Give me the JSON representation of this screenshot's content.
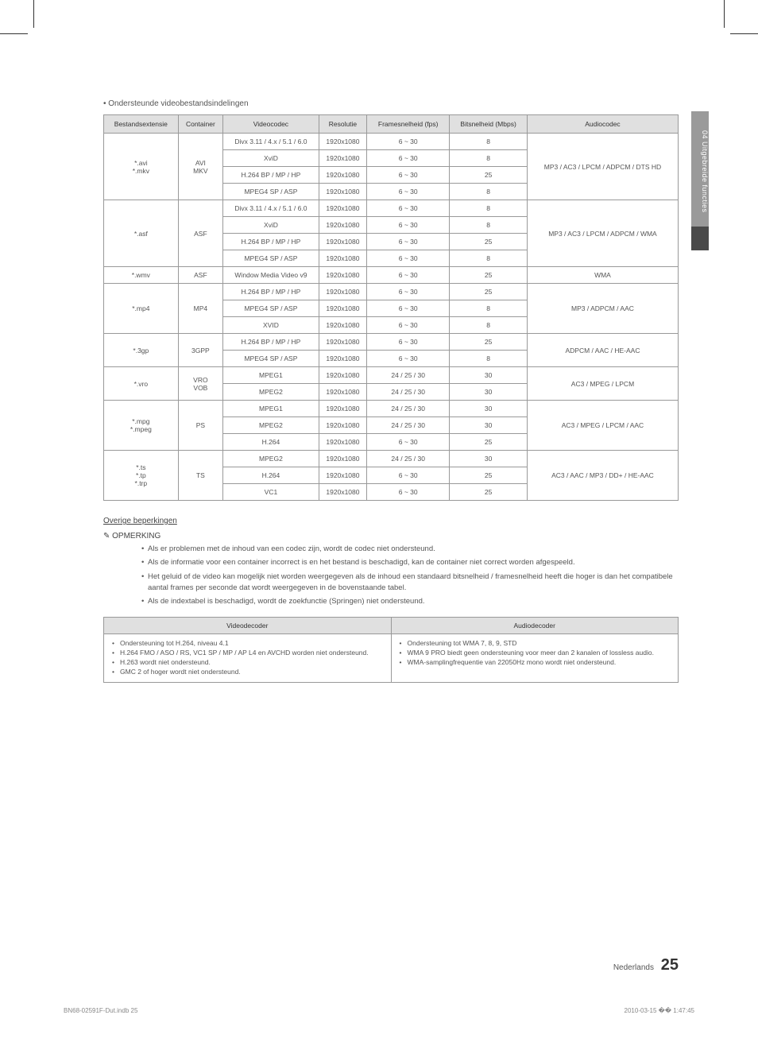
{
  "side_tab": "04  Uitgebreide functies",
  "bullet_heading": "•  Ondersteunde videobestandsindelingen",
  "table": {
    "headers": [
      "Bestandsextensie",
      "Container",
      "Videocodec",
      "Resolutie",
      "Framesnelheid (fps)",
      "Bitsnelheid (Mbps)",
      "Audiocodec"
    ],
    "rows": [
      {
        "ext": "*.avi\n*.mkv",
        "ext_rs": 4,
        "cont": "AVI\nMKV",
        "cont_rs": 4,
        "codec": "Divx 3.11 / 4.x / 5.1 / 6.0",
        "res": "1920x1080",
        "fps": "6 ~ 30",
        "bit": "8",
        "audio": "MP3 / AC3 / LPCM / ADPCM / DTS HD",
        "audio_rs": 4
      },
      {
        "codec": "XviD",
        "res": "1920x1080",
        "fps": "6 ~ 30",
        "bit": "8"
      },
      {
        "codec": "H.264 BP / MP / HP",
        "res": "1920x1080",
        "fps": "6 ~ 30",
        "bit": "25"
      },
      {
        "codec": "MPEG4 SP / ASP",
        "res": "1920x1080",
        "fps": "6 ~ 30",
        "bit": "8"
      },
      {
        "ext": "*.asf",
        "ext_rs": 4,
        "cont": "ASF",
        "cont_rs": 4,
        "codec": "Divx 3.11 / 4.x / 5.1 / 6.0",
        "res": "1920x1080",
        "fps": "6 ~ 30",
        "bit": "8",
        "audio": "MP3 / AC3 / LPCM / ADPCM / WMA",
        "audio_rs": 4
      },
      {
        "codec": "XviD",
        "res": "1920x1080",
        "fps": "6 ~ 30",
        "bit": "8"
      },
      {
        "codec": "H.264 BP / MP / HP",
        "res": "1920x1080",
        "fps": "6 ~ 30",
        "bit": "25"
      },
      {
        "codec": "MPEG4 SP / ASP",
        "res": "1920x1080",
        "fps": "6 ~ 30",
        "bit": "8"
      },
      {
        "ext": "*.wmv",
        "ext_rs": 1,
        "cont": "ASF",
        "cont_rs": 1,
        "codec": "Window Media Video v9",
        "res": "1920x1080",
        "fps": "6 ~ 30",
        "bit": "25",
        "audio": "WMA",
        "audio_rs": 1
      },
      {
        "ext": "*.mp4",
        "ext_rs": 3,
        "cont": "MP4",
        "cont_rs": 3,
        "codec": "H.264 BP / MP / HP",
        "res": "1920x1080",
        "fps": "6 ~ 30",
        "bit": "25",
        "audio": "MP3 / ADPCM / AAC",
        "audio_rs": 3
      },
      {
        "codec": "MPEG4 SP / ASP",
        "res": "1920x1080",
        "fps": "6 ~ 30",
        "bit": "8"
      },
      {
        "codec": "XVID",
        "res": "1920x1080",
        "fps": "6 ~ 30",
        "bit": "8"
      },
      {
        "ext": "*.3gp",
        "ext_rs": 2,
        "cont": "3GPP",
        "cont_rs": 2,
        "codec": "H.264 BP / MP / HP",
        "res": "1920x1080",
        "fps": "6 ~ 30",
        "bit": "25",
        "audio": "ADPCM / AAC / HE-AAC",
        "audio_rs": 2
      },
      {
        "codec": "MPEG4 SP / ASP",
        "res": "1920x1080",
        "fps": "6 ~ 30",
        "bit": "8"
      },
      {
        "ext": "*.vro",
        "ext_rs": 2,
        "cont": "VRO\nVOB",
        "cont_rs": 2,
        "codec": "MPEG1",
        "res": "1920x1080",
        "fps": "24 / 25 / 30",
        "bit": "30",
        "audio": "AC3 / MPEG / LPCM",
        "audio_rs": 2
      },
      {
        "codec": "MPEG2",
        "res": "1920x1080",
        "fps": "24 / 25 / 30",
        "bit": "30"
      },
      {
        "ext": "*.mpg\n*.mpeg",
        "ext_rs": 3,
        "cont": "PS",
        "cont_rs": 3,
        "codec": "MPEG1",
        "res": "1920x1080",
        "fps": "24 / 25 / 30",
        "bit": "30",
        "audio": "AC3 / MPEG / LPCM / AAC",
        "audio_rs": 3
      },
      {
        "codec": "MPEG2",
        "res": "1920x1080",
        "fps": "24 / 25 / 30",
        "bit": "30"
      },
      {
        "codec": "H.264",
        "res": "1920x1080",
        "fps": "6 ~ 30",
        "bit": "25"
      },
      {
        "ext": "*.ts\n*.tp\n*.trp",
        "ext_rs": 3,
        "cont": "TS",
        "cont_rs": 3,
        "codec": "MPEG2",
        "res": "1920x1080",
        "fps": "24 / 25 / 30",
        "bit": "30",
        "audio": "AC3 / AAC / MP3 / DD+ / HE-AAC",
        "audio_rs": 3
      },
      {
        "codec": "H.264",
        "res": "1920x1080",
        "fps": "6 ~ 30",
        "bit": "25"
      },
      {
        "codec": "VC1",
        "res": "1920x1080",
        "fps": "6 ~ 30",
        "bit": "25"
      }
    ]
  },
  "restrictions_heading": "Overige beperkingen",
  "note_label": "✎ OPMERKING",
  "notes": [
    "Als er problemen met de inhoud van een codec zijn, wordt de codec niet ondersteund.",
    "Als de informatie voor een container incorrect is en het bestand is beschadigd, kan de container niet correct worden afgespeeld.",
    "Het geluid of de video kan mogelijk niet worden weergegeven als de inhoud een standaard bitsnelheid / framesnelheid heeft die hoger is dan het compatibele aantal frames per seconde dat wordt weergegeven in de bovenstaande tabel.",
    "Als de indextabel is beschadigd, wordt de zoekfunctie (Springen) niet ondersteund."
  ],
  "decoder": {
    "headers": [
      "Videodecoder",
      "Audiodecoder"
    ],
    "video_items": [
      "Ondersteuning tot H.264, niveau 4.1",
      "H.264 FMO / ASO / RS, VC1 SP / MP / AP L4 en AVCHD worden niet ondersteund.",
      "H.263 wordt niet ondersteund.",
      "GMC 2 of hoger wordt niet ondersteund."
    ],
    "audio_items": [
      "Ondersteuning tot WMA 7, 8, 9, STD",
      "WMA 9 PRO biedt geen ondersteuning voor meer dan 2 kanalen of lossless audio.",
      "WMA-samplingfrequentie van 22050Hz mono wordt niet ondersteund."
    ]
  },
  "footer": {
    "lang": "Nederlands",
    "page": "25"
  },
  "file_info": "BN68-02591F-Dut.indb   25",
  "print_time": "2010-03-15   �� 1:47:45"
}
